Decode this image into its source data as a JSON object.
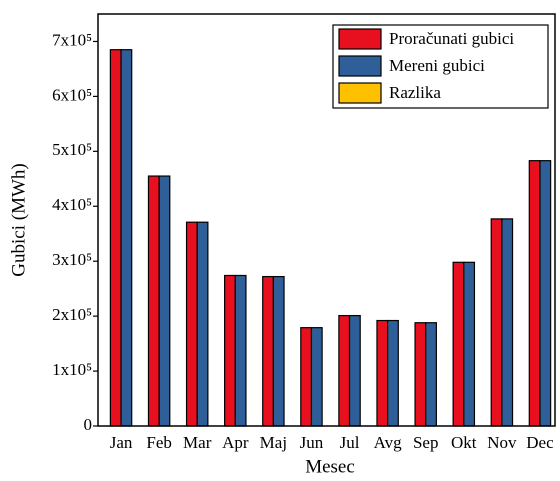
{
  "chart_data": {
    "type": "bar",
    "x_label": "Mesec",
    "y_label": "Gubici (MWh)",
    "categories": [
      "Jan",
      "Feb",
      "Mar",
      "Apr",
      "Maj",
      "Jun",
      "Jul",
      "Avg",
      "Sep",
      "Okt",
      "Nov",
      "Dec"
    ],
    "series": [
      {
        "name": "Proračunati gubici",
        "color": "#e8101f",
        "values": [
          685000,
          455000,
          371000,
          274000,
          272000,
          179000,
          201000,
          192000,
          188000,
          298000,
          377000,
          483000
        ]
      },
      {
        "name": "Mereni gubici",
        "color": "#2e5f98",
        "values": [
          685000,
          455000,
          371000,
          274000,
          272000,
          179000,
          201000,
          192000,
          188000,
          298000,
          377000,
          483000
        ]
      },
      {
        "name": "Razlika",
        "color": "#ffc000",
        "values": [
          0,
          0,
          0,
          0,
          0,
          0,
          0,
          0,
          0,
          0,
          0,
          0
        ]
      }
    ],
    "ylim": [
      0,
      750000
    ],
    "yticks": [
      0,
      {
        "value": 100000,
        "label": "1x10⁵"
      },
      {
        "value": 200000,
        "label": "2x10⁵"
      },
      {
        "value": 300000,
        "label": "3x10⁵"
      },
      {
        "value": 400000,
        "label": "4x10⁵"
      },
      {
        "value": 500000,
        "label": "5x10⁵"
      },
      {
        "value": 600000,
        "label": "6x10⁵"
      },
      {
        "value": 700000,
        "label": "7x10⁵"
      }
    ],
    "legend": "upper right"
  }
}
